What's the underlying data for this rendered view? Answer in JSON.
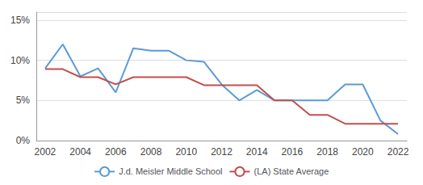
{
  "chart_data": {
    "type": "line",
    "x": [
      2002,
      2003,
      2004,
      2005,
      2006,
      2007,
      2008,
      2009,
      2010,
      2011,
      2012,
      2013,
      2014,
      2015,
      2016,
      2017,
      2018,
      2019,
      2020,
      2021,
      2022
    ],
    "series": [
      {
        "name": "J.d. Meisler Middle School",
        "color": "#5b9bd5",
        "values": [
          0.09,
          0.12,
          0.08,
          0.09,
          0.06,
          0.115,
          0.112,
          0.112,
          0.1,
          0.098,
          0.07,
          0.05,
          0.063,
          0.05,
          0.05,
          0.05,
          0.05,
          0.07,
          0.07,
          0.025,
          0.008
        ]
      },
      {
        "name": "(LA) State Average",
        "color": "#c0504d",
        "values": [
          0.089,
          0.089,
          0.079,
          0.079,
          0.07,
          0.079,
          0.079,
          0.079,
          0.079,
          0.069,
          0.069,
          0.069,
          0.069,
          0.05,
          0.05,
          0.032,
          0.032,
          0.021,
          0.021,
          0.021,
          0.021
        ]
      }
    ],
    "xlim": [
      2001.5,
      2022.5
    ],
    "xticks": [
      2002,
      2004,
      2006,
      2008,
      2010,
      2012,
      2014,
      2016,
      2018,
      2020,
      2022
    ],
    "ylim": [
      0,
      0.16
    ],
    "yticks": [
      {
        "value": 0,
        "label": "0%"
      },
      {
        "value": 0.05,
        "label": "5%"
      },
      {
        "value": 0.1,
        "label": "10%"
      },
      {
        "value": 0.15,
        "label": "15%"
      }
    ],
    "grid": true,
    "legend": "bottom"
  }
}
